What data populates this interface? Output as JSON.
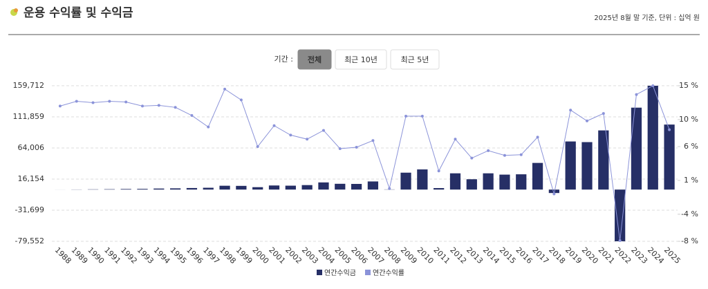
{
  "header": {
    "title": "운용 수익률 및 수익금",
    "note": "2025년 8월 말 기준, 단위 : 십억 원"
  },
  "filter": {
    "label": "기간 :",
    "buttons": [
      "전체",
      "최근 10년",
      "최근 5년"
    ],
    "active": 0
  },
  "chart_data": {
    "type": "bar",
    "categories": [
      "1988",
      "1989",
      "1990",
      "1991",
      "1992",
      "1993",
      "1994",
      "1995",
      "1996",
      "1997",
      "1998",
      "1999",
      "2000",
      "2001",
      "2002",
      "2003",
      "2004",
      "2005",
      "2006",
      "2007",
      "2008",
      "2009",
      "2010",
      "2011",
      "2012",
      "2013",
      "2014",
      "2015",
      "2016",
      "2017",
      "2018",
      "2019",
      "2020",
      "2021",
      "2022",
      "2023",
      "2024",
      "2025"
    ],
    "series": [
      {
        "name": "연간수익금",
        "type": "bar",
        "color": "#262f66",
        "values": [
          50,
          200,
          400,
          600,
          900,
          1100,
          1600,
          1900,
          2400,
          2800,
          5900,
          5700,
          3700,
          6300,
          6000,
          6900,
          11000,
          8900,
          8700,
          12500,
          300,
          26000,
          31000,
          2300,
          25000,
          15900,
          25000,
          23000,
          23500,
          41000,
          -5300,
          74000,
          73000,
          91000,
          -79552,
          126000,
          159712,
          100000
        ]
      },
      {
        "name": "연간수익률",
        "type": "line",
        "axis": "y2",
        "color": "#8b93d9",
        "values": [
          12.0,
          12.7,
          12.5,
          12.7,
          12.6,
          12.0,
          12.1,
          11.8,
          10.6,
          8.9,
          14.5,
          12.9,
          6.0,
          9.1,
          7.7,
          7.1,
          8.4,
          5.7,
          5.9,
          6.9,
          -0.2,
          10.5,
          10.5,
          2.4,
          7.1,
          4.3,
          5.4,
          4.7,
          4.8,
          7.4,
          -1.0,
          11.4,
          9.8,
          10.9,
          -7.9,
          13.7,
          15.0,
          8.5
        ]
      }
    ],
    "ylim": [
      -79552,
      159712
    ],
    "yticks": [
      {
        "value": -79552,
        "label": "-79,552"
      },
      {
        "value": -31699,
        "label": "-31,699"
      },
      {
        "value": 16154,
        "label": "16,154"
      },
      {
        "value": 64006,
        "label": "64,006"
      },
      {
        "value": 111859,
        "label": "111,859"
      },
      {
        "value": 159712,
        "label": "159,712"
      }
    ],
    "y2lim": [
      -8,
      15
    ],
    "y2ticks": [
      {
        "value": -8,
        "label": "-8 %"
      },
      {
        "value": -4,
        "label": "-4 %"
      },
      {
        "value": 1,
        "label": "1 %"
      },
      {
        "value": 6,
        "label": "6 %"
      },
      {
        "value": 10,
        "label": "10 %"
      },
      {
        "value": 15,
        "label": "15 %"
      }
    ],
    "grid": true
  }
}
